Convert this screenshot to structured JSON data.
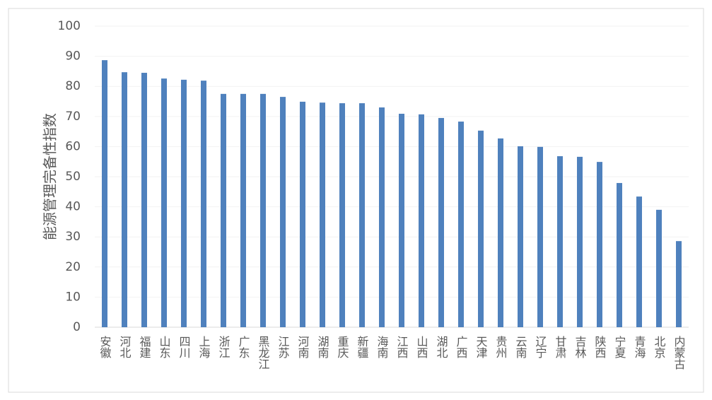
{
  "chart_data": {
    "type": "bar",
    "y_label": "能源管理完备性指数",
    "categories": [
      "安徽",
      "河北",
      "福建",
      "山东",
      "四川",
      "上海",
      "浙江",
      "广东",
      "黑龙江",
      "江苏",
      "河南",
      "湖南",
      "重庆",
      "新疆",
      "海南",
      "江西",
      "山西",
      "湖北",
      "广西",
      "天津",
      "贵州",
      "云南",
      "辽宁",
      "甘肃",
      "吉林",
      "陕西",
      "宁夏",
      "青海",
      "北京",
      "内蒙古"
    ],
    "values": [
      88.7,
      84.7,
      84.5,
      82.6,
      82.2,
      81.9,
      77.5,
      77.5,
      77.5,
      76.5,
      74.9,
      74.6,
      74.4,
      74.4,
      73.0,
      70.9,
      70.7,
      69.5,
      68.3,
      65.3,
      62.7,
      60.1,
      59.9,
      56.8,
      56.6,
      54.9,
      47.9,
      43.4,
      39.0,
      28.6
    ],
    "color": "#4f81bd",
    "ylim": [
      0,
      100
    ],
    "yticks": [
      0,
      10,
      20,
      30,
      40,
      50,
      60,
      70,
      80,
      90,
      100
    ],
    "grid": true
  }
}
